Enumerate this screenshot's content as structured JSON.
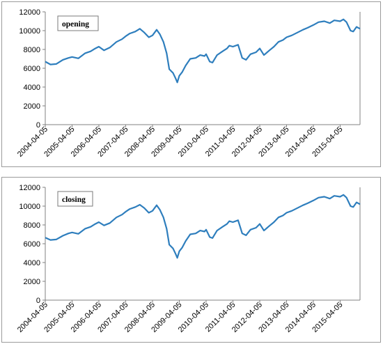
{
  "chart_data": [
    {
      "type": "line",
      "label": "opening",
      "color": "#2e7ebd",
      "ylim": [
        0,
        12000
      ],
      "yticks": [
        0,
        2000,
        4000,
        6000,
        8000,
        10000,
        12000
      ],
      "xticks": [
        "2004-04-05",
        "2005-04-05",
        "2006-04-05",
        "2007-04-05",
        "2008-04-05",
        "2009-04-05",
        "2010-04-05",
        "2011-04-05",
        "2012-04-05",
        "2013-04-05",
        "2014-04-05",
        "2015-04-05"
      ],
      "x_range": [
        "2004-04-05",
        "2016-01-01"
      ],
      "grid": false,
      "x": [
        "2004-04-05",
        "2004-06-15",
        "2004-09-01",
        "2004-12-01",
        "2005-02-15",
        "2005-04-05",
        "2005-07-01",
        "2005-10-01",
        "2005-12-15",
        "2006-02-15",
        "2006-04-05",
        "2006-06-15",
        "2006-09-01",
        "2006-12-01",
        "2007-02-15",
        "2007-04-05",
        "2007-06-01",
        "2007-08-15",
        "2007-10-15",
        "2007-12-15",
        "2008-02-15",
        "2008-04-05",
        "2008-06-01",
        "2008-07-15",
        "2008-09-01",
        "2008-10-15",
        "2008-11-20",
        "2009-01-10",
        "2009-02-15",
        "2009-03-09",
        "2009-04-05",
        "2009-05-15",
        "2009-07-01",
        "2009-09-01",
        "2009-11-15",
        "2010-01-15",
        "2010-03-15",
        "2010-04-05",
        "2010-05-25",
        "2010-07-01",
        "2010-09-01",
        "2010-11-15",
        "2011-01-15",
        "2011-02-15",
        "2011-04-05",
        "2011-06-15",
        "2011-08-10",
        "2011-10-01",
        "2011-12-01",
        "2012-02-15",
        "2012-04-05",
        "2012-06-01",
        "2012-08-15",
        "2012-10-15",
        "2012-12-15",
        "2013-02-15",
        "2013-04-05",
        "2013-06-15",
        "2013-09-01",
        "2013-11-15",
        "2014-01-15",
        "2014-04-05",
        "2014-06-15",
        "2014-09-01",
        "2014-11-15",
        "2015-01-15",
        "2015-04-05",
        "2015-05-20",
        "2015-07-01",
        "2015-08-25",
        "2015-10-01",
        "2015-11-15",
        "2016-01-01"
      ],
      "values": [
        6700,
        6400,
        6450,
        6900,
        7100,
        7200,
        7050,
        7600,
        7800,
        8100,
        8300,
        7900,
        8200,
        8800,
        9100,
        9400,
        9700,
        9900,
        10200,
        9800,
        9300,
        9500,
        10100,
        9600,
        8800,
        7600,
        5900,
        5500,
        4900,
        4500,
        5200,
        5600,
        6300,
        7000,
        7100,
        7400,
        7300,
        7500,
        6700,
        6600,
        7400,
        7800,
        8100,
        8400,
        8300,
        8500,
        7100,
        6900,
        7500,
        7700,
        8100,
        7400,
        7900,
        8300,
        8800,
        9000,
        9300,
        9500,
        9800,
        10100,
        10300,
        10600,
        10900,
        11000,
        10800,
        11100,
        11000,
        11200,
        10900,
        10000,
        9900,
        10400,
        10200
      ]
    },
    {
      "type": "line",
      "label": "closing",
      "color": "#2e7ebd",
      "ylim": [
        0,
        12000
      ],
      "yticks": [
        0,
        2000,
        4000,
        6000,
        8000,
        10000,
        12000
      ],
      "xticks": [
        "2004-04-05",
        "2005-04-05",
        "2006-04-05",
        "2007-04-05",
        "2008-04-05",
        "2009-04-05",
        "2010-04-05",
        "2011-04-05",
        "2012-04-05",
        "2013-04-05",
        "2014-04-05",
        "2015-04-05"
      ],
      "x_range": [
        "2004-04-05",
        "2016-01-01"
      ],
      "grid": false,
      "x": [
        "2004-04-05",
        "2004-06-15",
        "2004-09-01",
        "2004-12-01",
        "2005-02-15",
        "2005-04-05",
        "2005-07-01",
        "2005-10-01",
        "2005-12-15",
        "2006-02-15",
        "2006-04-05",
        "2006-06-15",
        "2006-09-01",
        "2006-12-01",
        "2007-02-15",
        "2007-04-05",
        "2007-06-01",
        "2007-08-15",
        "2007-10-15",
        "2007-12-15",
        "2008-02-15",
        "2008-04-05",
        "2008-06-01",
        "2008-07-15",
        "2008-09-01",
        "2008-10-15",
        "2008-11-20",
        "2009-01-10",
        "2009-02-15",
        "2009-03-09",
        "2009-04-05",
        "2009-05-15",
        "2009-07-01",
        "2009-09-01",
        "2009-11-15",
        "2010-01-15",
        "2010-03-15",
        "2010-04-05",
        "2010-05-25",
        "2010-07-01",
        "2010-09-01",
        "2010-11-15",
        "2011-01-15",
        "2011-02-15",
        "2011-04-05",
        "2011-06-15",
        "2011-08-10",
        "2011-10-01",
        "2011-12-01",
        "2012-02-15",
        "2012-04-05",
        "2012-06-01",
        "2012-08-15",
        "2012-10-15",
        "2012-12-15",
        "2013-02-15",
        "2013-04-05",
        "2013-06-15",
        "2013-09-01",
        "2013-11-15",
        "2014-01-15",
        "2014-04-05",
        "2014-06-15",
        "2014-09-01",
        "2014-11-15",
        "2015-01-15",
        "2015-04-05",
        "2015-05-20",
        "2015-07-01",
        "2015-08-25",
        "2015-10-01",
        "2015-11-15",
        "2016-01-01"
      ],
      "values": [
        6650,
        6400,
        6450,
        6850,
        7100,
        7200,
        7050,
        7600,
        7800,
        8100,
        8300,
        7950,
        8200,
        8800,
        9100,
        9400,
        9700,
        9900,
        10150,
        9800,
        9300,
        9500,
        10100,
        9600,
        8800,
        7600,
        5900,
        5500,
        4900,
        4500,
        5200,
        5600,
        6300,
        7000,
        7100,
        7400,
        7300,
        7500,
        6700,
        6600,
        7400,
        7800,
        8100,
        8400,
        8300,
        8500,
        7100,
        6900,
        7500,
        7700,
        8100,
        7400,
        7900,
        8300,
        8800,
        9000,
        9300,
        9500,
        9800,
        10100,
        10300,
        10600,
        10900,
        11000,
        10800,
        11100,
        11000,
        11200,
        10900,
        10000,
        9900,
        10400,
        10200
      ]
    }
  ]
}
